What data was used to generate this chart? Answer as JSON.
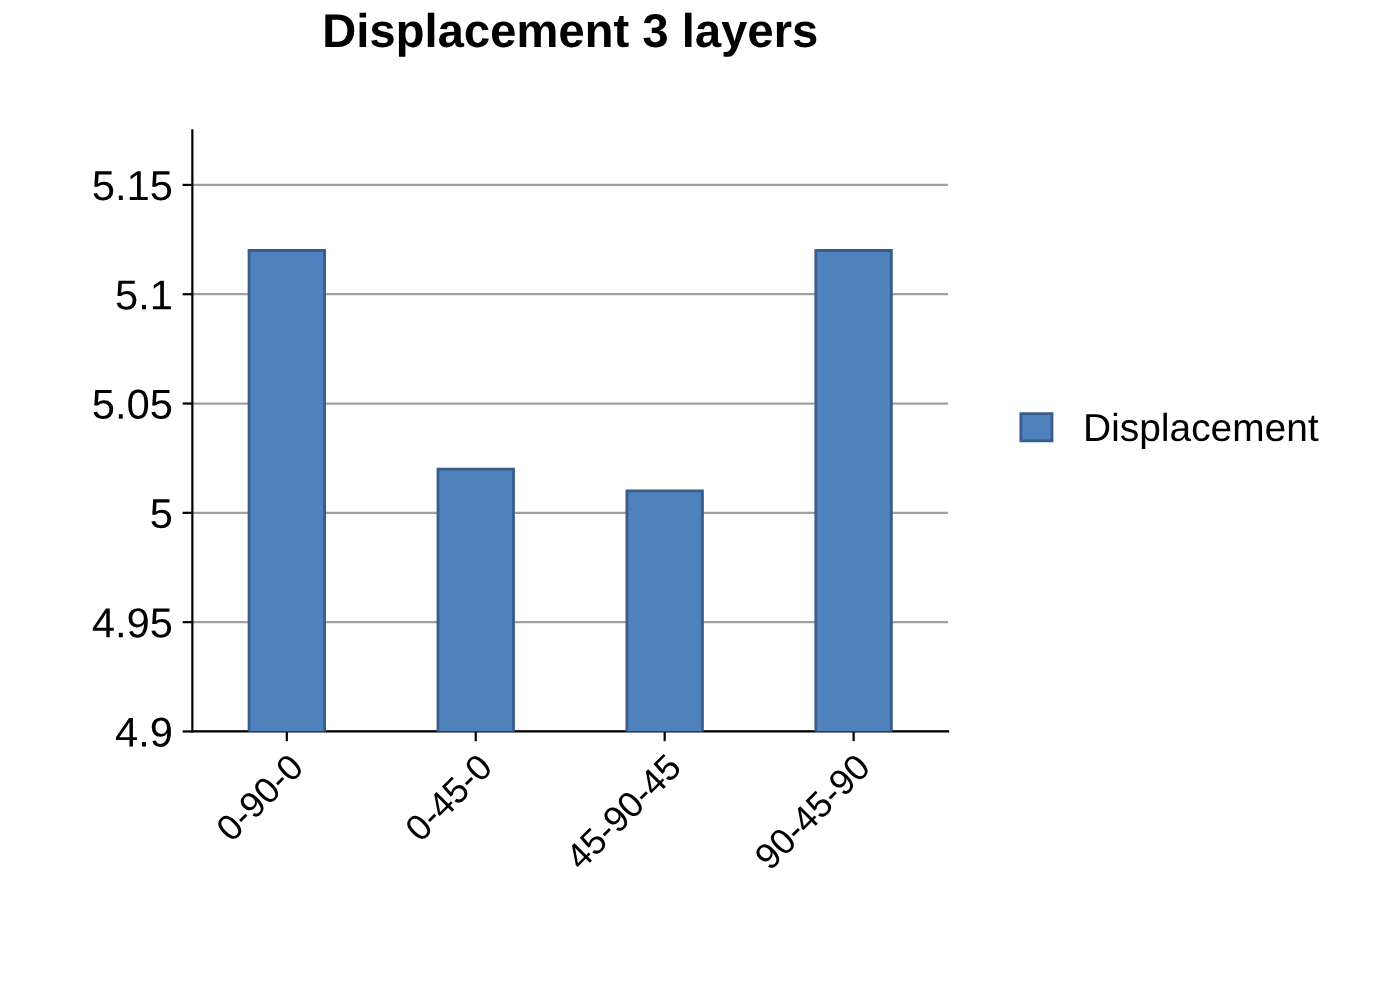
{
  "chart_data": {
    "type": "bar",
    "title": "Displacement 3 layers",
    "categories": [
      "0-90-0",
      "0-45-0",
      "45-90-45",
      "90-45-90"
    ],
    "series": [
      {
        "name": "Displacement",
        "color": "#4f81bd",
        "values": [
          5.12,
          5.02,
          5.01,
          5.12
        ]
      }
    ],
    "ylim": [
      4.9,
      5.175
    ],
    "yticks": [
      4.9,
      4.95,
      5,
      5.05,
      5.1,
      5.15
    ],
    "grid": "y",
    "legend": "right"
  }
}
